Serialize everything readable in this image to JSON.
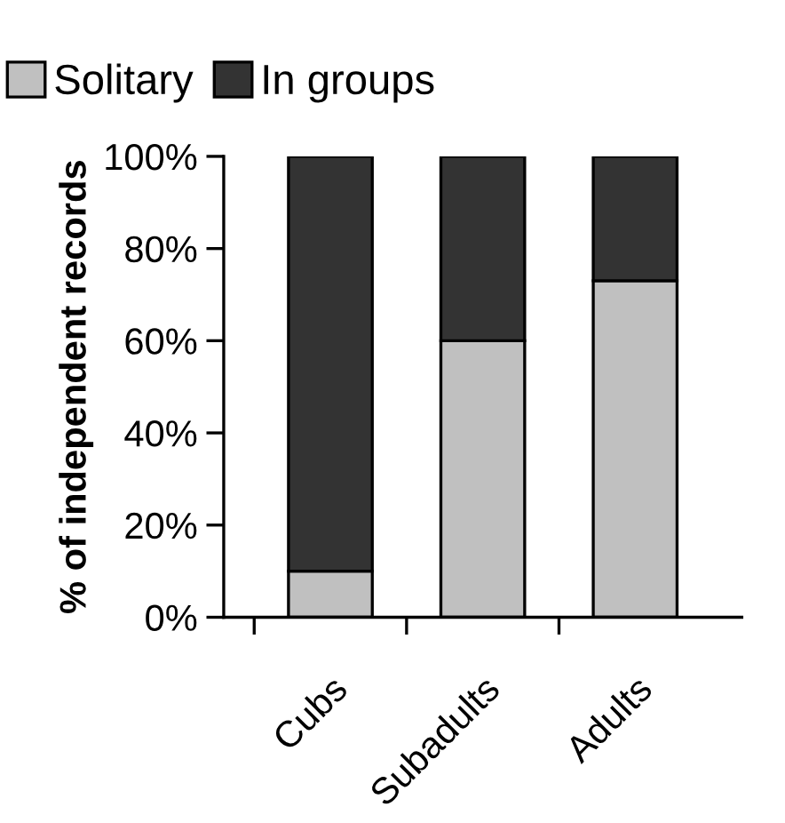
{
  "chart_data": {
    "type": "bar",
    "stacked": true,
    "ylabel": "% of independent records",
    "categories": [
      "Cubs",
      "Subadults",
      "Adults"
    ],
    "series": [
      {
        "name": "Solitary",
        "color": "#c0c0c0",
        "values": [
          10,
          60,
          73
        ]
      },
      {
        "name": "In groups",
        "color": "#333333",
        "values": [
          90,
          40,
          27
        ]
      }
    ],
    "ylim": [
      0,
      100
    ],
    "yticks": [
      {
        "value": 0,
        "label": "0%"
      },
      {
        "value": 20,
        "label": "20%"
      },
      {
        "value": 40,
        "label": "40%"
      },
      {
        "value": 60,
        "label": "60%"
      },
      {
        "value": 80,
        "label": "80%"
      },
      {
        "value": 100,
        "label": "100%"
      }
    ],
    "grid": false,
    "legend": "top left"
  }
}
